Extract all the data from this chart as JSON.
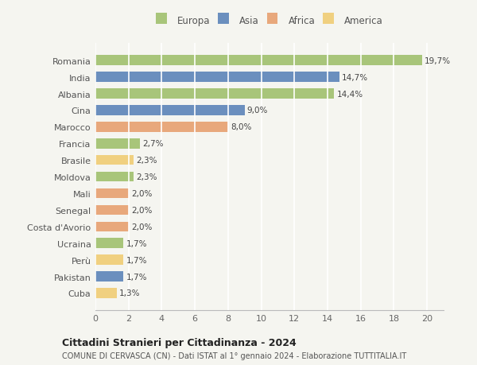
{
  "countries": [
    "Romania",
    "India",
    "Albania",
    "Cina",
    "Marocco",
    "Francia",
    "Brasile",
    "Moldova",
    "Mali",
    "Senegal",
    "Costa d'Avorio",
    "Ucraina",
    "Perù",
    "Pakistan",
    "Cuba"
  ],
  "values": [
    19.7,
    14.7,
    14.4,
    9.0,
    8.0,
    2.7,
    2.3,
    2.3,
    2.0,
    2.0,
    2.0,
    1.7,
    1.7,
    1.7,
    1.3
  ],
  "labels": [
    "19,7%",
    "14,7%",
    "14,4%",
    "9,0%",
    "8,0%",
    "2,7%",
    "2,3%",
    "2,3%",
    "2,0%",
    "2,0%",
    "2,0%",
    "1,7%",
    "1,7%",
    "1,7%",
    "1,3%"
  ],
  "continents": [
    "Europa",
    "Asia",
    "Europa",
    "Asia",
    "Africa",
    "Europa",
    "America",
    "Europa",
    "Africa",
    "Africa",
    "Africa",
    "Europa",
    "America",
    "Asia",
    "America"
  ],
  "colors": {
    "Europa": "#a8c57a",
    "Asia": "#6b8fbe",
    "Africa": "#e8a87c",
    "America": "#f0d080"
  },
  "title": "Cittadini Stranieri per Cittadinanza - 2024",
  "subtitle": "COMUNE DI CERVASCA (CN) - Dati ISTAT al 1° gennaio 2024 - Elaborazione TUTTITALIA.IT",
  "xlim": [
    0,
    21
  ],
  "xticks": [
    0,
    2,
    4,
    6,
    8,
    10,
    12,
    14,
    16,
    18,
    20
  ],
  "background_color": "#f5f5f0",
  "grid_color": "#ffffff",
  "bar_height": 0.6
}
